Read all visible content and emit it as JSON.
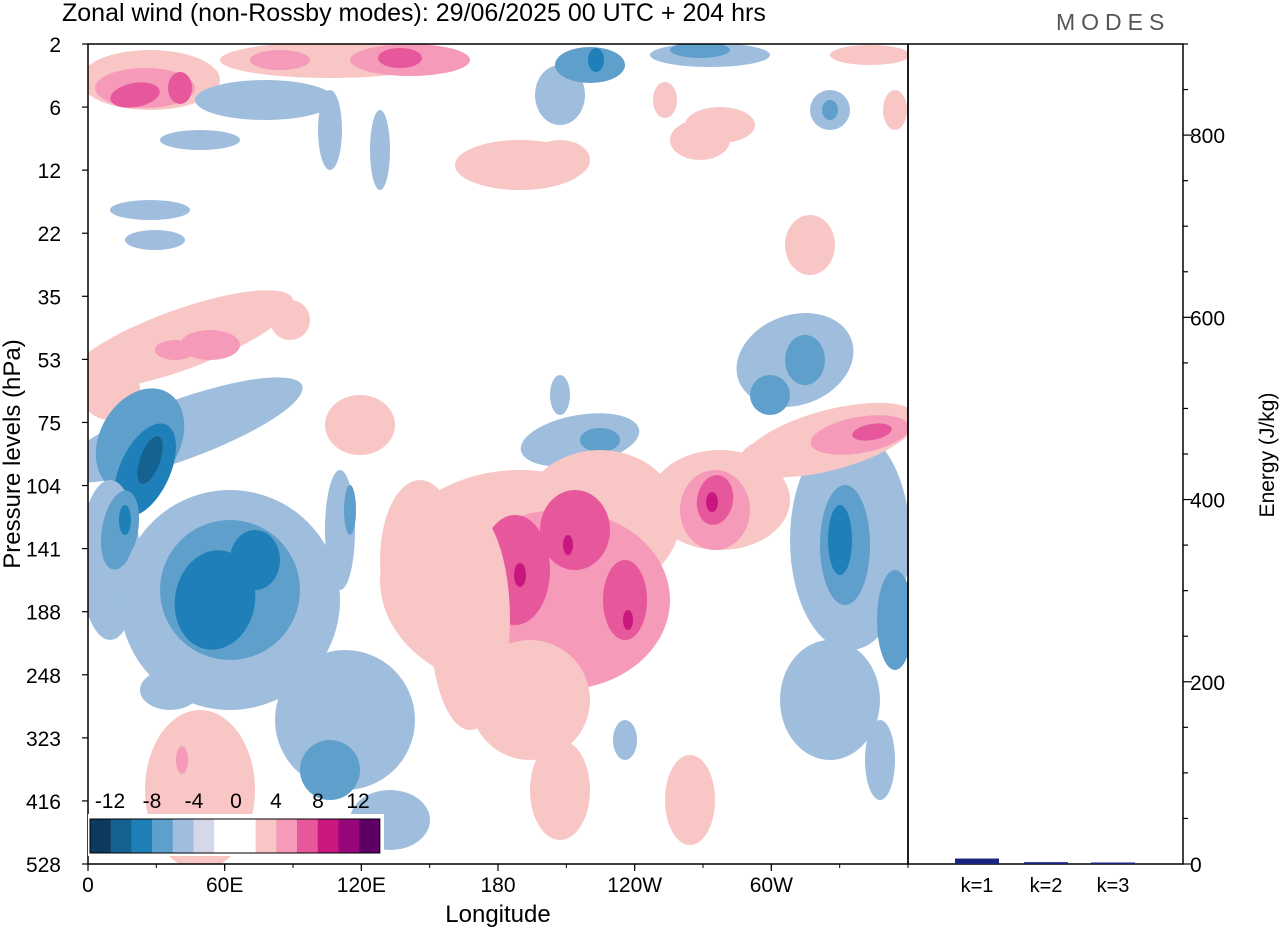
{
  "title": "Zonal wind (non-Rossby modes):  29/06/2025  00 UTC  + 204 hrs",
  "brand": "MODES",
  "chart_data": [
    {
      "type": "heatmap",
      "xlabel": "Longitude",
      "ylabel": "Pressure levels (hPa)",
      "x_ticks": [
        "0",
        "60E",
        "120E",
        "180",
        "120W",
        "60W"
      ],
      "y_ticks": [
        "2",
        "6",
        "12",
        "22",
        "35",
        "53",
        "75",
        "104",
        "141",
        "188",
        "248",
        "323",
        "416",
        "528"
      ],
      "colorbar": {
        "tick_labels": [
          "-12",
          "-8",
          "-4",
          "0",
          "4",
          "8",
          "12"
        ],
        "colors": [
          "#0d3a5c",
          "#14628f",
          "#1f7fb8",
          "#5e9fcc",
          "#9fbede",
          "#d4d8e8",
          "#ffffff",
          "#ffffff",
          "#f9c6c6",
          "#f59ab8",
          "#e7579b",
          "#c8187f",
          "#96077a",
          "#5c0066"
        ]
      }
    },
    {
      "type": "bar",
      "categories": [
        "k=1",
        "k=2",
        "k=3"
      ],
      "values": [
        6,
        2,
        1.5
      ],
      "ylabel": "Energy (J/kg)",
      "y_ticks": [
        "0",
        "200",
        "400",
        "600",
        "800"
      ],
      "ylim": [
        0,
        900
      ],
      "bar_colors": [
        "#1a237e",
        "#1a237e",
        "#1a237e"
      ]
    }
  ]
}
